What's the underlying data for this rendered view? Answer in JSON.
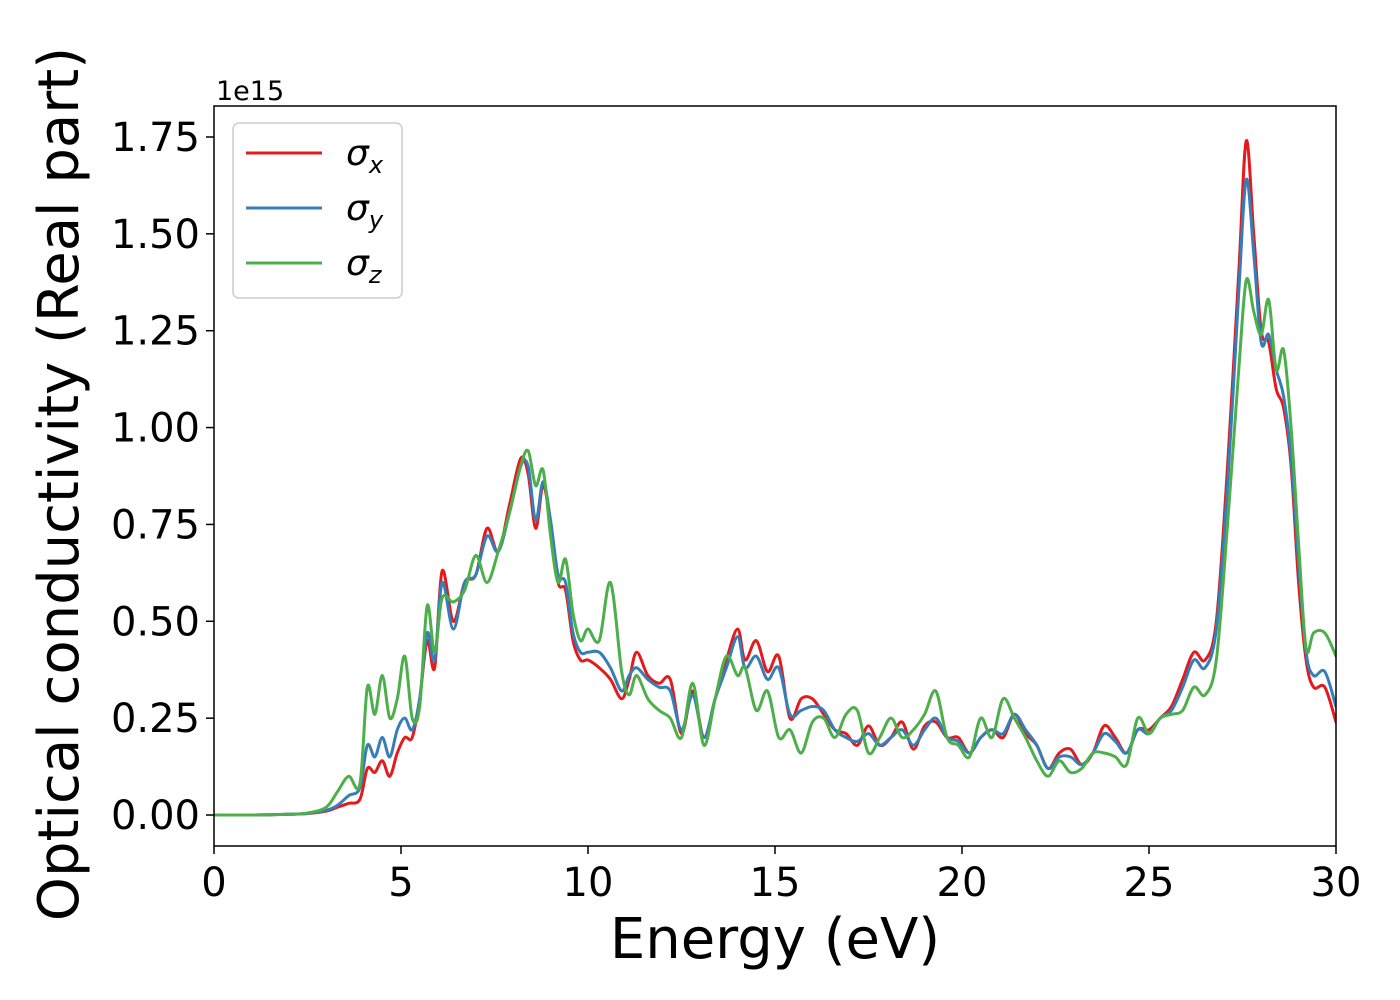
{
  "chart_data": {
    "type": "line",
    "xlabel": "Energy (eV)",
    "ylabel": "Optical conductivity (Real part)",
    "y_offset_text": "1e15",
    "xlim": [
      0,
      30
    ],
    "ylim": [
      -0.08,
      1.83
    ],
    "x_ticks": [
      0,
      5,
      10,
      15,
      20,
      25,
      30
    ],
    "x_tick_labels": [
      "0",
      "5",
      "10",
      "15",
      "20",
      "25",
      "30"
    ],
    "y_ticks": [
      0,
      0.25,
      0.5,
      0.75,
      1.0,
      1.25,
      1.5,
      1.75
    ],
    "y_tick_labels": [
      "0.00",
      "0.25",
      "0.50",
      "0.75",
      "1.00",
      "1.25",
      "1.50",
      "1.75"
    ],
    "grid": false,
    "legend_position": "upper-left",
    "series": [
      {
        "name": "σx",
        "symbol": "σ",
        "subscript": "x",
        "color": "#e41a1c",
        "x": [
          0,
          1,
          2,
          2.5,
          3,
          3.3,
          3.6,
          3.9,
          4.1,
          4.3,
          4.5,
          4.7,
          4.9,
          5.1,
          5.3,
          5.5,
          5.7,
          5.9,
          6.1,
          6.4,
          6.7,
          7.0,
          7.3,
          7.6,
          7.9,
          8.2,
          8.4,
          8.6,
          8.8,
          9.0,
          9.2,
          9.4,
          9.6,
          9.8,
          10.0,
          10.3,
          10.6,
          10.9,
          11.1,
          11.3,
          11.6,
          11.9,
          12.2,
          12.5,
          12.8,
          13.1,
          13.4,
          13.7,
          14.0,
          14.2,
          14.5,
          14.8,
          15.1,
          15.4,
          15.7,
          16.0,
          16.3,
          16.6,
          16.9,
          17.2,
          17.5,
          17.8,
          18.1,
          18.4,
          18.7,
          19.0,
          19.3,
          19.6,
          19.9,
          20.2,
          20.5,
          20.8,
          21.1,
          21.4,
          21.7,
          22.0,
          22.3,
          22.6,
          22.9,
          23.2,
          23.5,
          23.8,
          24.1,
          24.4,
          24.7,
          25.0,
          25.3,
          25.6,
          25.9,
          26.2,
          26.5,
          26.8,
          27.1,
          27.4,
          27.6,
          27.8,
          28.0,
          28.2,
          28.4,
          28.6,
          28.8,
          29.0,
          29.2,
          29.4,
          29.7,
          30.0
        ],
        "y": [
          0,
          0,
          0.002,
          0.004,
          0.01,
          0.02,
          0.03,
          0.04,
          0.12,
          0.11,
          0.14,
          0.1,
          0.16,
          0.2,
          0.2,
          0.3,
          0.45,
          0.38,
          0.63,
          0.5,
          0.6,
          0.62,
          0.74,
          0.68,
          0.8,
          0.92,
          0.88,
          0.74,
          0.85,
          0.75,
          0.6,
          0.58,
          0.45,
          0.4,
          0.4,
          0.38,
          0.35,
          0.3,
          0.35,
          0.42,
          0.36,
          0.34,
          0.35,
          0.21,
          0.32,
          0.2,
          0.3,
          0.4,
          0.48,
          0.4,
          0.45,
          0.37,
          0.41,
          0.25,
          0.3,
          0.3,
          0.26,
          0.22,
          0.21,
          0.18,
          0.23,
          0.18,
          0.2,
          0.24,
          0.17,
          0.23,
          0.24,
          0.2,
          0.2,
          0.16,
          0.2,
          0.22,
          0.2,
          0.26,
          0.21,
          0.18,
          0.12,
          0.16,
          0.17,
          0.13,
          0.16,
          0.23,
          0.2,
          0.16,
          0.22,
          0.22,
          0.25,
          0.28,
          0.35,
          0.42,
          0.4,
          0.5,
          0.9,
          1.4,
          1.74,
          1.5,
          1.25,
          1.22,
          1.1,
          1.05,
          0.9,
          0.6,
          0.4,
          0.33,
          0.33,
          0.24
        ]
      },
      {
        "name": "σy",
        "symbol": "σ",
        "subscript": "y",
        "color": "#377eb8",
        "x": [
          0,
          1,
          2,
          2.5,
          3,
          3.3,
          3.6,
          3.9,
          4.1,
          4.3,
          4.5,
          4.7,
          4.9,
          5.1,
          5.3,
          5.5,
          5.7,
          5.9,
          6.1,
          6.4,
          6.7,
          7.0,
          7.3,
          7.6,
          7.9,
          8.2,
          8.4,
          8.6,
          8.8,
          9.0,
          9.2,
          9.4,
          9.6,
          9.8,
          10.0,
          10.3,
          10.6,
          10.9,
          11.1,
          11.3,
          11.6,
          11.9,
          12.2,
          12.5,
          12.8,
          13.1,
          13.4,
          13.7,
          14.0,
          14.2,
          14.5,
          14.8,
          15.1,
          15.4,
          15.7,
          16.0,
          16.3,
          16.6,
          16.9,
          17.2,
          17.5,
          17.8,
          18.1,
          18.4,
          18.7,
          19.0,
          19.3,
          19.6,
          19.9,
          20.2,
          20.5,
          20.8,
          21.1,
          21.4,
          21.7,
          22.0,
          22.3,
          22.6,
          22.9,
          23.2,
          23.5,
          23.8,
          24.1,
          24.4,
          24.7,
          25.0,
          25.3,
          25.6,
          25.9,
          26.2,
          26.5,
          26.8,
          27.1,
          27.4,
          27.6,
          27.8,
          28.0,
          28.2,
          28.4,
          28.6,
          28.8,
          29.0,
          29.2,
          29.4,
          29.7,
          30.0
        ],
        "y": [
          0,
          0,
          0.002,
          0.004,
          0.012,
          0.025,
          0.05,
          0.07,
          0.18,
          0.15,
          0.2,
          0.15,
          0.22,
          0.25,
          0.22,
          0.3,
          0.47,
          0.4,
          0.6,
          0.48,
          0.6,
          0.62,
          0.72,
          0.68,
          0.78,
          0.9,
          0.9,
          0.76,
          0.86,
          0.76,
          0.62,
          0.6,
          0.47,
          0.42,
          0.42,
          0.42,
          0.38,
          0.32,
          0.36,
          0.38,
          0.35,
          0.33,
          0.32,
          0.22,
          0.31,
          0.2,
          0.3,
          0.38,
          0.46,
          0.38,
          0.41,
          0.35,
          0.38,
          0.26,
          0.27,
          0.28,
          0.27,
          0.22,
          0.2,
          0.19,
          0.21,
          0.18,
          0.2,
          0.22,
          0.18,
          0.22,
          0.25,
          0.2,
          0.19,
          0.16,
          0.2,
          0.22,
          0.21,
          0.26,
          0.22,
          0.18,
          0.12,
          0.15,
          0.15,
          0.13,
          0.16,
          0.21,
          0.19,
          0.16,
          0.22,
          0.21,
          0.25,
          0.27,
          0.33,
          0.4,
          0.38,
          0.48,
          0.85,
          1.35,
          1.64,
          1.45,
          1.22,
          1.24,
          1.15,
          1.08,
          0.92,
          0.65,
          0.42,
          0.36,
          0.37,
          0.28
        ]
      },
      {
        "name": "σz",
        "symbol": "σ",
        "subscript": "z",
        "color": "#4daf4a",
        "x": [
          0,
          1,
          2,
          2.5,
          3,
          3.3,
          3.6,
          3.9,
          4.1,
          4.3,
          4.5,
          4.7,
          4.9,
          5.1,
          5.3,
          5.5,
          5.7,
          5.9,
          6.1,
          6.4,
          6.7,
          7.0,
          7.3,
          7.6,
          7.9,
          8.2,
          8.4,
          8.6,
          8.8,
          9.0,
          9.2,
          9.4,
          9.6,
          9.8,
          10.0,
          10.3,
          10.6,
          10.9,
          11.1,
          11.3,
          11.6,
          11.9,
          12.2,
          12.5,
          12.8,
          13.1,
          13.4,
          13.7,
          14.0,
          14.2,
          14.5,
          14.8,
          15.1,
          15.4,
          15.7,
          16.0,
          16.3,
          16.6,
          16.9,
          17.2,
          17.5,
          17.8,
          18.1,
          18.4,
          18.7,
          19.0,
          19.3,
          19.6,
          19.9,
          20.2,
          20.5,
          20.8,
          21.1,
          21.4,
          21.7,
          22.0,
          22.3,
          22.6,
          22.9,
          23.2,
          23.5,
          23.8,
          24.1,
          24.4,
          24.7,
          25.0,
          25.3,
          25.6,
          25.9,
          26.2,
          26.5,
          26.8,
          27.1,
          27.4,
          27.6,
          27.8,
          28.0,
          28.2,
          28.4,
          28.6,
          28.8,
          29.0,
          29.2,
          29.4,
          29.7,
          30.0
        ],
        "y": [
          0,
          0,
          0.002,
          0.005,
          0.02,
          0.06,
          0.1,
          0.08,
          0.33,
          0.26,
          0.36,
          0.25,
          0.3,
          0.41,
          0.25,
          0.28,
          0.54,
          0.42,
          0.56,
          0.55,
          0.58,
          0.67,
          0.6,
          0.68,
          0.78,
          0.9,
          0.94,
          0.85,
          0.89,
          0.72,
          0.6,
          0.66,
          0.52,
          0.45,
          0.48,
          0.45,
          0.6,
          0.37,
          0.31,
          0.36,
          0.3,
          0.27,
          0.25,
          0.2,
          0.34,
          0.18,
          0.3,
          0.41,
          0.36,
          0.38,
          0.27,
          0.32,
          0.2,
          0.22,
          0.16,
          0.24,
          0.25,
          0.2,
          0.26,
          0.27,
          0.16,
          0.2,
          0.25,
          0.2,
          0.22,
          0.26,
          0.32,
          0.2,
          0.18,
          0.15,
          0.25,
          0.2,
          0.3,
          0.25,
          0.2,
          0.14,
          0.1,
          0.14,
          0.11,
          0.12,
          0.16,
          0.16,
          0.15,
          0.13,
          0.25,
          0.21,
          0.25,
          0.26,
          0.27,
          0.33,
          0.31,
          0.4,
          0.75,
          1.15,
          1.38,
          1.3,
          1.24,
          1.33,
          1.15,
          1.2,
          1.0,
          0.7,
          0.43,
          0.47,
          0.47,
          0.41
        ]
      }
    ]
  }
}
